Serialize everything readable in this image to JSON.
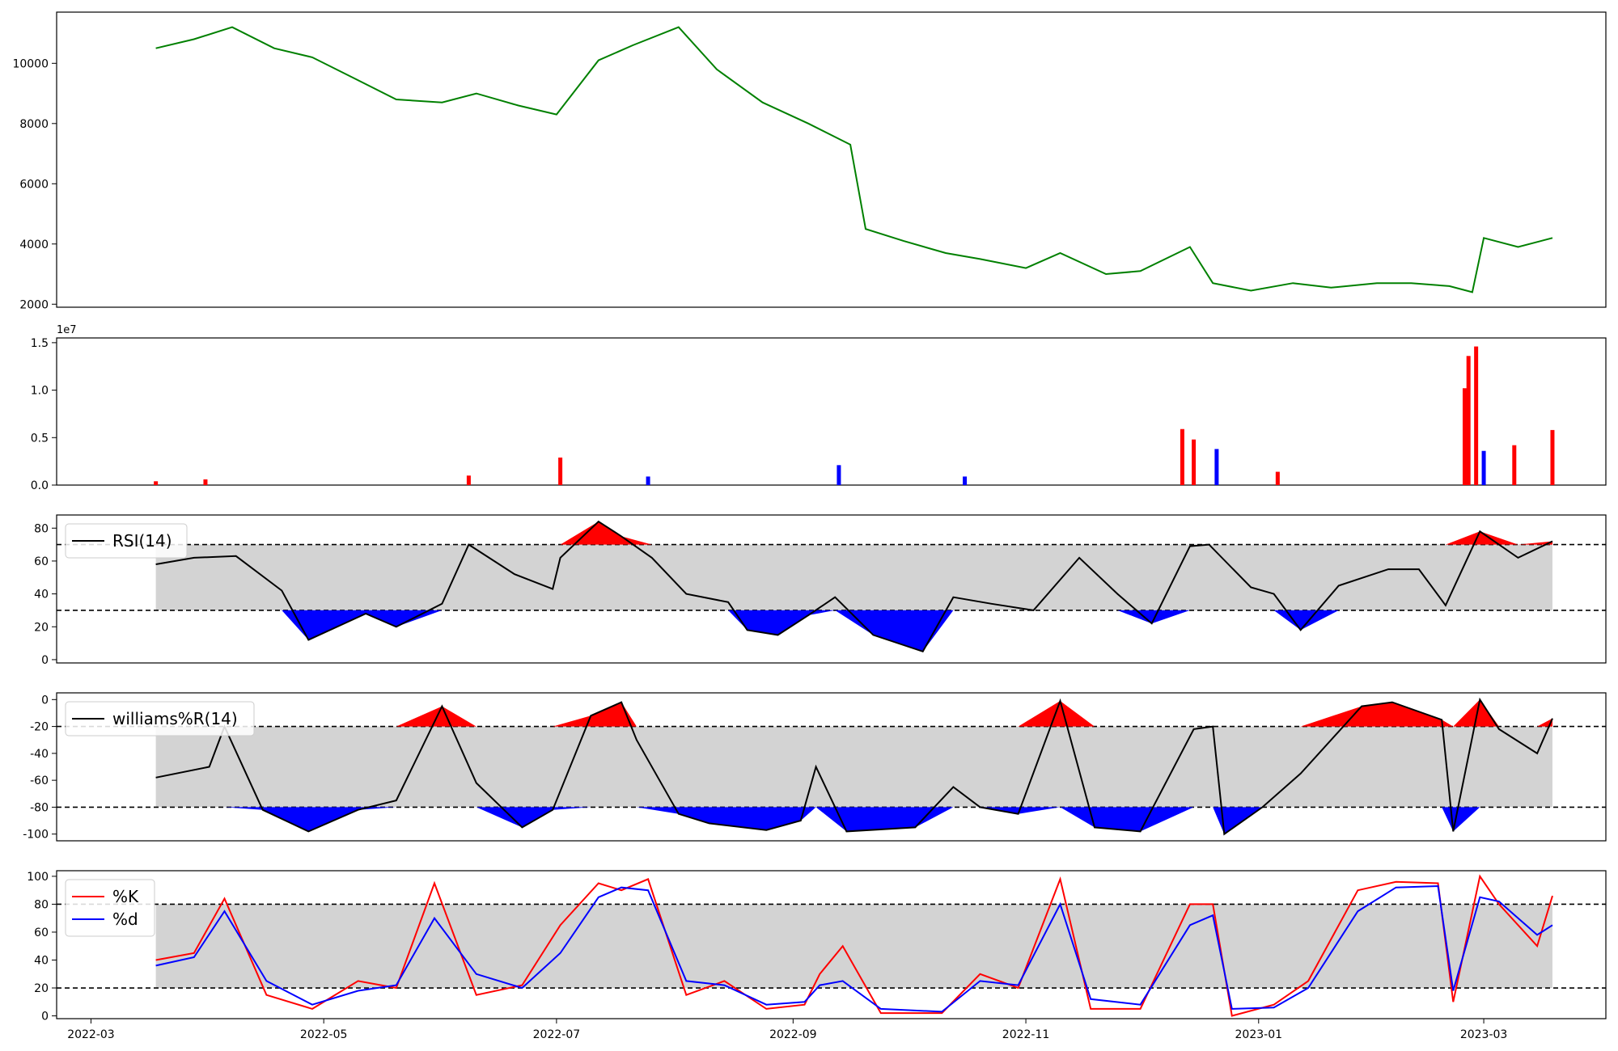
{
  "chart_data": [
    {
      "type": "line",
      "panel": "price",
      "x_dates": [
        "2022-03-18",
        "2022-03-28",
        "2022-04-07",
        "2022-04-18",
        "2022-04-28",
        "2022-05-09",
        "2022-05-20",
        "2022-06-01",
        "2022-06-10",
        "2022-06-21",
        "2022-07-01",
        "2022-07-12",
        "2022-07-21",
        "2022-08-02",
        "2022-08-12",
        "2022-08-24",
        "2022-09-05",
        "2022-09-16",
        "2022-09-20",
        "2022-09-30",
        "2022-10-11",
        "2022-10-20",
        "2022-11-01",
        "2022-11-10",
        "2022-11-22",
        "2022-12-01",
        "2022-12-14",
        "2022-12-20",
        "2022-12-30",
        "2023-01-10",
        "2023-01-20",
        "2023-02-01",
        "2023-02-10",
        "2023-02-20",
        "2023-02-26",
        "2023-03-01",
        "2023-03-10",
        "2023-03-19"
      ],
      "values": [
        10500,
        10800,
        11200,
        10500,
        10200,
        9500,
        8800,
        8700,
        9000,
        8600,
        8300,
        10100,
        10600,
        11200,
        9800,
        8700,
        8000,
        7300,
        4500,
        4100,
        3700,
        3500,
        3200,
        3700,
        3000,
        3100,
        3900,
        2700,
        2450,
        2700,
        2550,
        2700,
        2700,
        2600,
        2400,
        4200,
        3900,
        4200
      ],
      "color": "#008000",
      "yticks": [
        2000,
        4000,
        6000,
        8000,
        10000
      ],
      "ylim": [
        1900,
        11700
      ]
    },
    {
      "type": "bar",
      "panel": "volume",
      "offset_label": "1e7",
      "yticks": [
        "0.0",
        "0.5",
        "1.0",
        "1.5"
      ],
      "ylim": [
        0,
        1.55
      ],
      "x_dates": [
        "2022-03-18",
        "2022-03-31",
        "2022-06-08",
        "2022-07-02",
        "2022-07-25",
        "2022-09-13",
        "2022-10-16",
        "2022-12-12",
        "2022-12-15",
        "2022-12-21",
        "2023-01-06",
        "2023-02-24",
        "2023-02-25",
        "2023-02-27",
        "2023-03-01",
        "2023-03-09",
        "2023-03-19"
      ],
      "values": [
        0.04,
        0.06,
        0.1,
        0.29,
        0.09,
        0.21,
        0.09,
        0.59,
        0.48,
        0.38,
        0.14,
        1.02,
        1.36,
        1.46,
        0.36,
        0.42,
        0.58
      ],
      "colors": [
        "#ff0000",
        "#ff0000",
        "#ff0000",
        "#ff0000",
        "#0000ff",
        "#0000ff",
        "#0000ff",
        "#ff0000",
        "#ff0000",
        "#0000ff",
        "#ff0000",
        "#ff0000",
        "#ff0000",
        "#ff0000",
        "#0000ff",
        "#ff0000",
        "#ff0000"
      ]
    },
    {
      "type": "line",
      "panel": "rsi",
      "legend": "RSI(14)",
      "upper": 70,
      "lower": 30,
      "yticks": [
        0,
        20,
        40,
        60,
        80
      ],
      "ylim": [
        -2,
        88
      ],
      "x_dates": [
        "2022-03-18",
        "2022-03-28",
        "2022-04-08",
        "2022-04-20",
        "2022-04-27",
        "2022-05-12",
        "2022-05-20",
        "2022-06-01",
        "2022-06-08",
        "2022-06-20",
        "2022-06-30",
        "2022-07-02",
        "2022-07-12",
        "2022-07-18",
        "2022-07-26",
        "2022-08-04",
        "2022-08-15",
        "2022-08-20",
        "2022-08-28",
        "2022-09-05",
        "2022-09-12",
        "2022-09-22",
        "2022-10-05",
        "2022-10-13",
        "2022-10-23",
        "2022-11-03",
        "2022-11-15",
        "2022-11-25",
        "2022-12-04",
        "2022-12-14",
        "2022-12-19",
        "2022-12-30",
        "2023-01-05",
        "2023-01-12",
        "2023-01-22",
        "2023-02-04",
        "2023-02-12",
        "2023-02-19",
        "2023-02-28",
        "2023-03-10",
        "2023-03-19"
      ],
      "values": [
        58,
        62,
        63,
        42,
        12,
        28,
        20,
        34,
        70,
        52,
        43,
        62,
        84,
        75,
        62,
        40,
        35,
        18,
        15,
        27,
        38,
        15,
        5,
        38,
        34,
        30,
        62,
        40,
        22,
        69,
        70,
        44,
        40,
        18,
        45,
        55,
        55,
        33,
        78,
        62,
        72
      ],
      "color": "#000000"
    },
    {
      "type": "line",
      "panel": "williams",
      "legend": "williams%R(14)",
      "upper": -20,
      "lower": -80,
      "yticks": [
        -100,
        -80,
        -60,
        -40,
        -20,
        0
      ],
      "ylim": [
        -105,
        5
      ],
      "x_dates": [
        "2022-03-18",
        "2022-04-01",
        "2022-04-05",
        "2022-04-15",
        "2022-04-27",
        "2022-05-10",
        "2022-05-20",
        "2022-06-01",
        "2022-06-10",
        "2022-06-22",
        "2022-06-30",
        "2022-07-10",
        "2022-07-18",
        "2022-07-22",
        "2022-08-02",
        "2022-08-10",
        "2022-08-25",
        "2022-09-03",
        "2022-09-07",
        "2022-09-15",
        "2022-10-03",
        "2022-10-13",
        "2022-10-20",
        "2022-10-30",
        "2022-11-10",
        "2022-11-19",
        "2022-12-01",
        "2022-12-15",
        "2022-12-20",
        "2022-12-23",
        "2023-01-02",
        "2023-01-12",
        "2023-01-28",
        "2023-02-05",
        "2023-02-18",
        "2023-02-21",
        "2023-02-28",
        "2023-03-05",
        "2023-03-15",
        "2023-03-19"
      ],
      "values": [
        -58,
        -50,
        -20,
        -82,
        -98,
        -82,
        -75,
        -5,
        -62,
        -95,
        -82,
        -12,
        -2,
        -30,
        -85,
        -92,
        -97,
        -90,
        -50,
        -98,
        -95,
        -65,
        -80,
        -85,
        -1,
        -95,
        -98,
        -22,
        -20,
        -100,
        -80,
        -55,
        -5,
        -2,
        -15,
        -98,
        0,
        -22,
        -40,
        -14
      ],
      "color": "#000000"
    },
    {
      "type": "line",
      "panel": "stochastic",
      "upper": 80,
      "lower": 20,
      "yticks": [
        0,
        20,
        40,
        60,
        80,
        100
      ],
      "ylim": [
        -2,
        104
      ],
      "xticks": [
        "2022-03",
        "2022-05",
        "2022-07",
        "2022-09",
        "2022-11",
        "2023-01",
        "2023-03"
      ],
      "series": [
        {
          "name": "%K",
          "color": "#ff0000",
          "x_dates": [
            "2022-03-18",
            "2022-03-28",
            "2022-04-05",
            "2022-04-16",
            "2022-04-28",
            "2022-05-10",
            "2022-05-20",
            "2022-05-30",
            "2022-06-10",
            "2022-06-22",
            "2022-07-02",
            "2022-07-12",
            "2022-07-18",
            "2022-07-25",
            "2022-08-04",
            "2022-08-14",
            "2022-08-25",
            "2022-09-04",
            "2022-09-08",
            "2022-09-14",
            "2022-09-24",
            "2022-10-10",
            "2022-10-20",
            "2022-10-30",
            "2022-11-10",
            "2022-11-18",
            "2022-12-01",
            "2022-12-14",
            "2022-12-20",
            "2022-12-25",
            "2023-01-05",
            "2023-01-14",
            "2023-01-27",
            "2023-02-06",
            "2023-02-17",
            "2023-02-21",
            "2023-02-28",
            "2023-03-05",
            "2023-03-15",
            "2023-03-19"
          ],
          "values": [
            40,
            45,
            84,
            15,
            5,
            25,
            20,
            95,
            15,
            22,
            65,
            95,
            90,
            98,
            15,
            25,
            5,
            8,
            30,
            50,
            2,
            2,
            30,
            20,
            98,
            5,
            5,
            80,
            80,
            0,
            8,
            25,
            90,
            96,
            95,
            10,
            100,
            80,
            50,
            86
          ]
        },
        {
          "name": "%d",
          "color": "#0000ff",
          "x_dates": [
            "2022-03-18",
            "2022-03-28",
            "2022-04-05",
            "2022-04-16",
            "2022-04-28",
            "2022-05-10",
            "2022-05-20",
            "2022-05-30",
            "2022-06-10",
            "2022-06-22",
            "2022-07-02",
            "2022-07-12",
            "2022-07-18",
            "2022-07-25",
            "2022-08-04",
            "2022-08-14",
            "2022-08-25",
            "2022-09-04",
            "2022-09-08",
            "2022-09-14",
            "2022-09-24",
            "2022-10-10",
            "2022-10-20",
            "2022-10-30",
            "2022-11-10",
            "2022-11-18",
            "2022-12-01",
            "2022-12-14",
            "2022-12-20",
            "2022-12-25",
            "2023-01-05",
            "2023-01-14",
            "2023-01-27",
            "2023-02-06",
            "2023-02-17",
            "2023-02-21",
            "2023-02-28",
            "2023-03-05",
            "2023-03-15",
            "2023-03-19"
          ],
          "values": [
            36,
            42,
            75,
            25,
            8,
            18,
            22,
            70,
            30,
            20,
            45,
            85,
            92,
            90,
            25,
            22,
            8,
            10,
            22,
            25,
            5,
            3,
            25,
            22,
            80,
            12,
            8,
            65,
            72,
            5,
            6,
            20,
            75,
            92,
            93,
            18,
            85,
            82,
            58,
            65
          ]
        }
      ]
    }
  ]
}
